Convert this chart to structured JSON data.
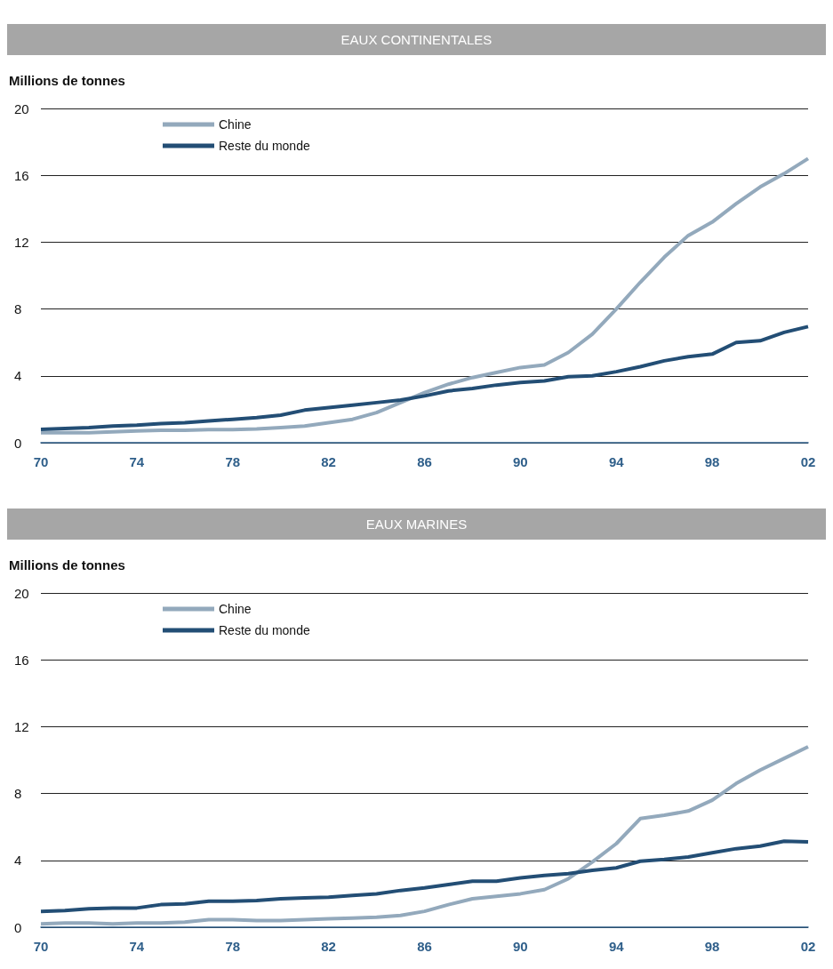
{
  "chart_data": [
    {
      "type": "line",
      "title": "EAUX CONTINENTALES",
      "ylabel": "Millions de tonnes",
      "categories": [
        "70",
        null,
        null,
        null,
        "74",
        null,
        null,
        null,
        "78",
        null,
        null,
        null,
        "82",
        null,
        null,
        null,
        "86",
        null,
        null,
        null,
        "90",
        null,
        null,
        null,
        "94",
        null,
        null,
        null,
        "98",
        null,
        null,
        null,
        "02"
      ],
      "series": [
        {
          "name": "Chine",
          "color": "#93a9bc",
          "values": [
            0.6,
            0.6,
            0.6,
            0.65,
            0.7,
            0.75,
            0.75,
            0.78,
            0.78,
            0.82,
            0.9,
            1.0,
            1.2,
            1.4,
            1.8,
            2.4,
            3.0,
            3.5,
            3.9,
            4.2,
            4.5,
            4.65,
            5.4,
            6.5,
            8.0,
            9.6,
            11.1,
            12.4,
            13.2,
            14.3,
            15.3,
            16.1,
            17.0
          ]
        },
        {
          "name": "Reste du monde",
          "color": "#234e75",
          "values": [
            0.8,
            0.85,
            0.9,
            1.0,
            1.05,
            1.15,
            1.2,
            1.3,
            1.4,
            1.5,
            1.65,
            1.95,
            2.1,
            2.25,
            2.4,
            2.55,
            2.8,
            3.1,
            3.25,
            3.45,
            3.6,
            3.7,
            3.95,
            4.0,
            4.25,
            4.55,
            4.9,
            5.15,
            5.3,
            6.0,
            6.1,
            6.6,
            6.95
          ]
        }
      ],
      "ylim": [
        0,
        20
      ],
      "yticks": [
        0,
        4,
        8,
        12,
        16,
        20
      ],
      "grid": "y",
      "legend": "top left",
      "marker": "none"
    },
    {
      "type": "line",
      "title": "EAUX MARINES",
      "ylabel": "Millions de tonnes",
      "categories": [
        "70",
        null,
        null,
        null,
        "74",
        null,
        null,
        null,
        "78",
        null,
        null,
        null,
        "82",
        null,
        null,
        null,
        "86",
        null,
        null,
        null,
        "90",
        null,
        null,
        null,
        "94",
        null,
        null,
        null,
        "98",
        null,
        null,
        null,
        "02"
      ],
      "series": [
        {
          "name": "Chine",
          "color": "#93a9bc",
          "values": [
            0.2,
            0.25,
            0.25,
            0.2,
            0.25,
            0.25,
            0.3,
            0.45,
            0.45,
            0.4,
            0.4,
            0.45,
            0.5,
            0.55,
            0.6,
            0.7,
            0.95,
            1.35,
            1.7,
            1.85,
            2.0,
            2.25,
            2.9,
            3.9,
            5.0,
            6.5,
            6.7,
            6.95,
            7.6,
            8.6,
            9.4,
            10.1,
            10.8
          ]
        },
        {
          "name": "Reste du monde",
          "color": "#234e75",
          "values": [
            0.95,
            1.0,
            1.1,
            1.15,
            1.15,
            1.35,
            1.4,
            1.55,
            1.55,
            1.6,
            1.7,
            1.75,
            1.8,
            1.9,
            2.0,
            2.2,
            2.35,
            2.55,
            2.75,
            2.75,
            2.95,
            3.1,
            3.2,
            3.4,
            3.55,
            3.95,
            4.05,
            4.2,
            4.45,
            4.7,
            4.85,
            5.15,
            5.1
          ]
        }
      ],
      "ylim": [
        0,
        20
      ],
      "yticks": [
        0,
        4,
        8,
        12,
        16,
        20
      ],
      "grid": "y",
      "legend": "top left",
      "marker": "none"
    }
  ]
}
